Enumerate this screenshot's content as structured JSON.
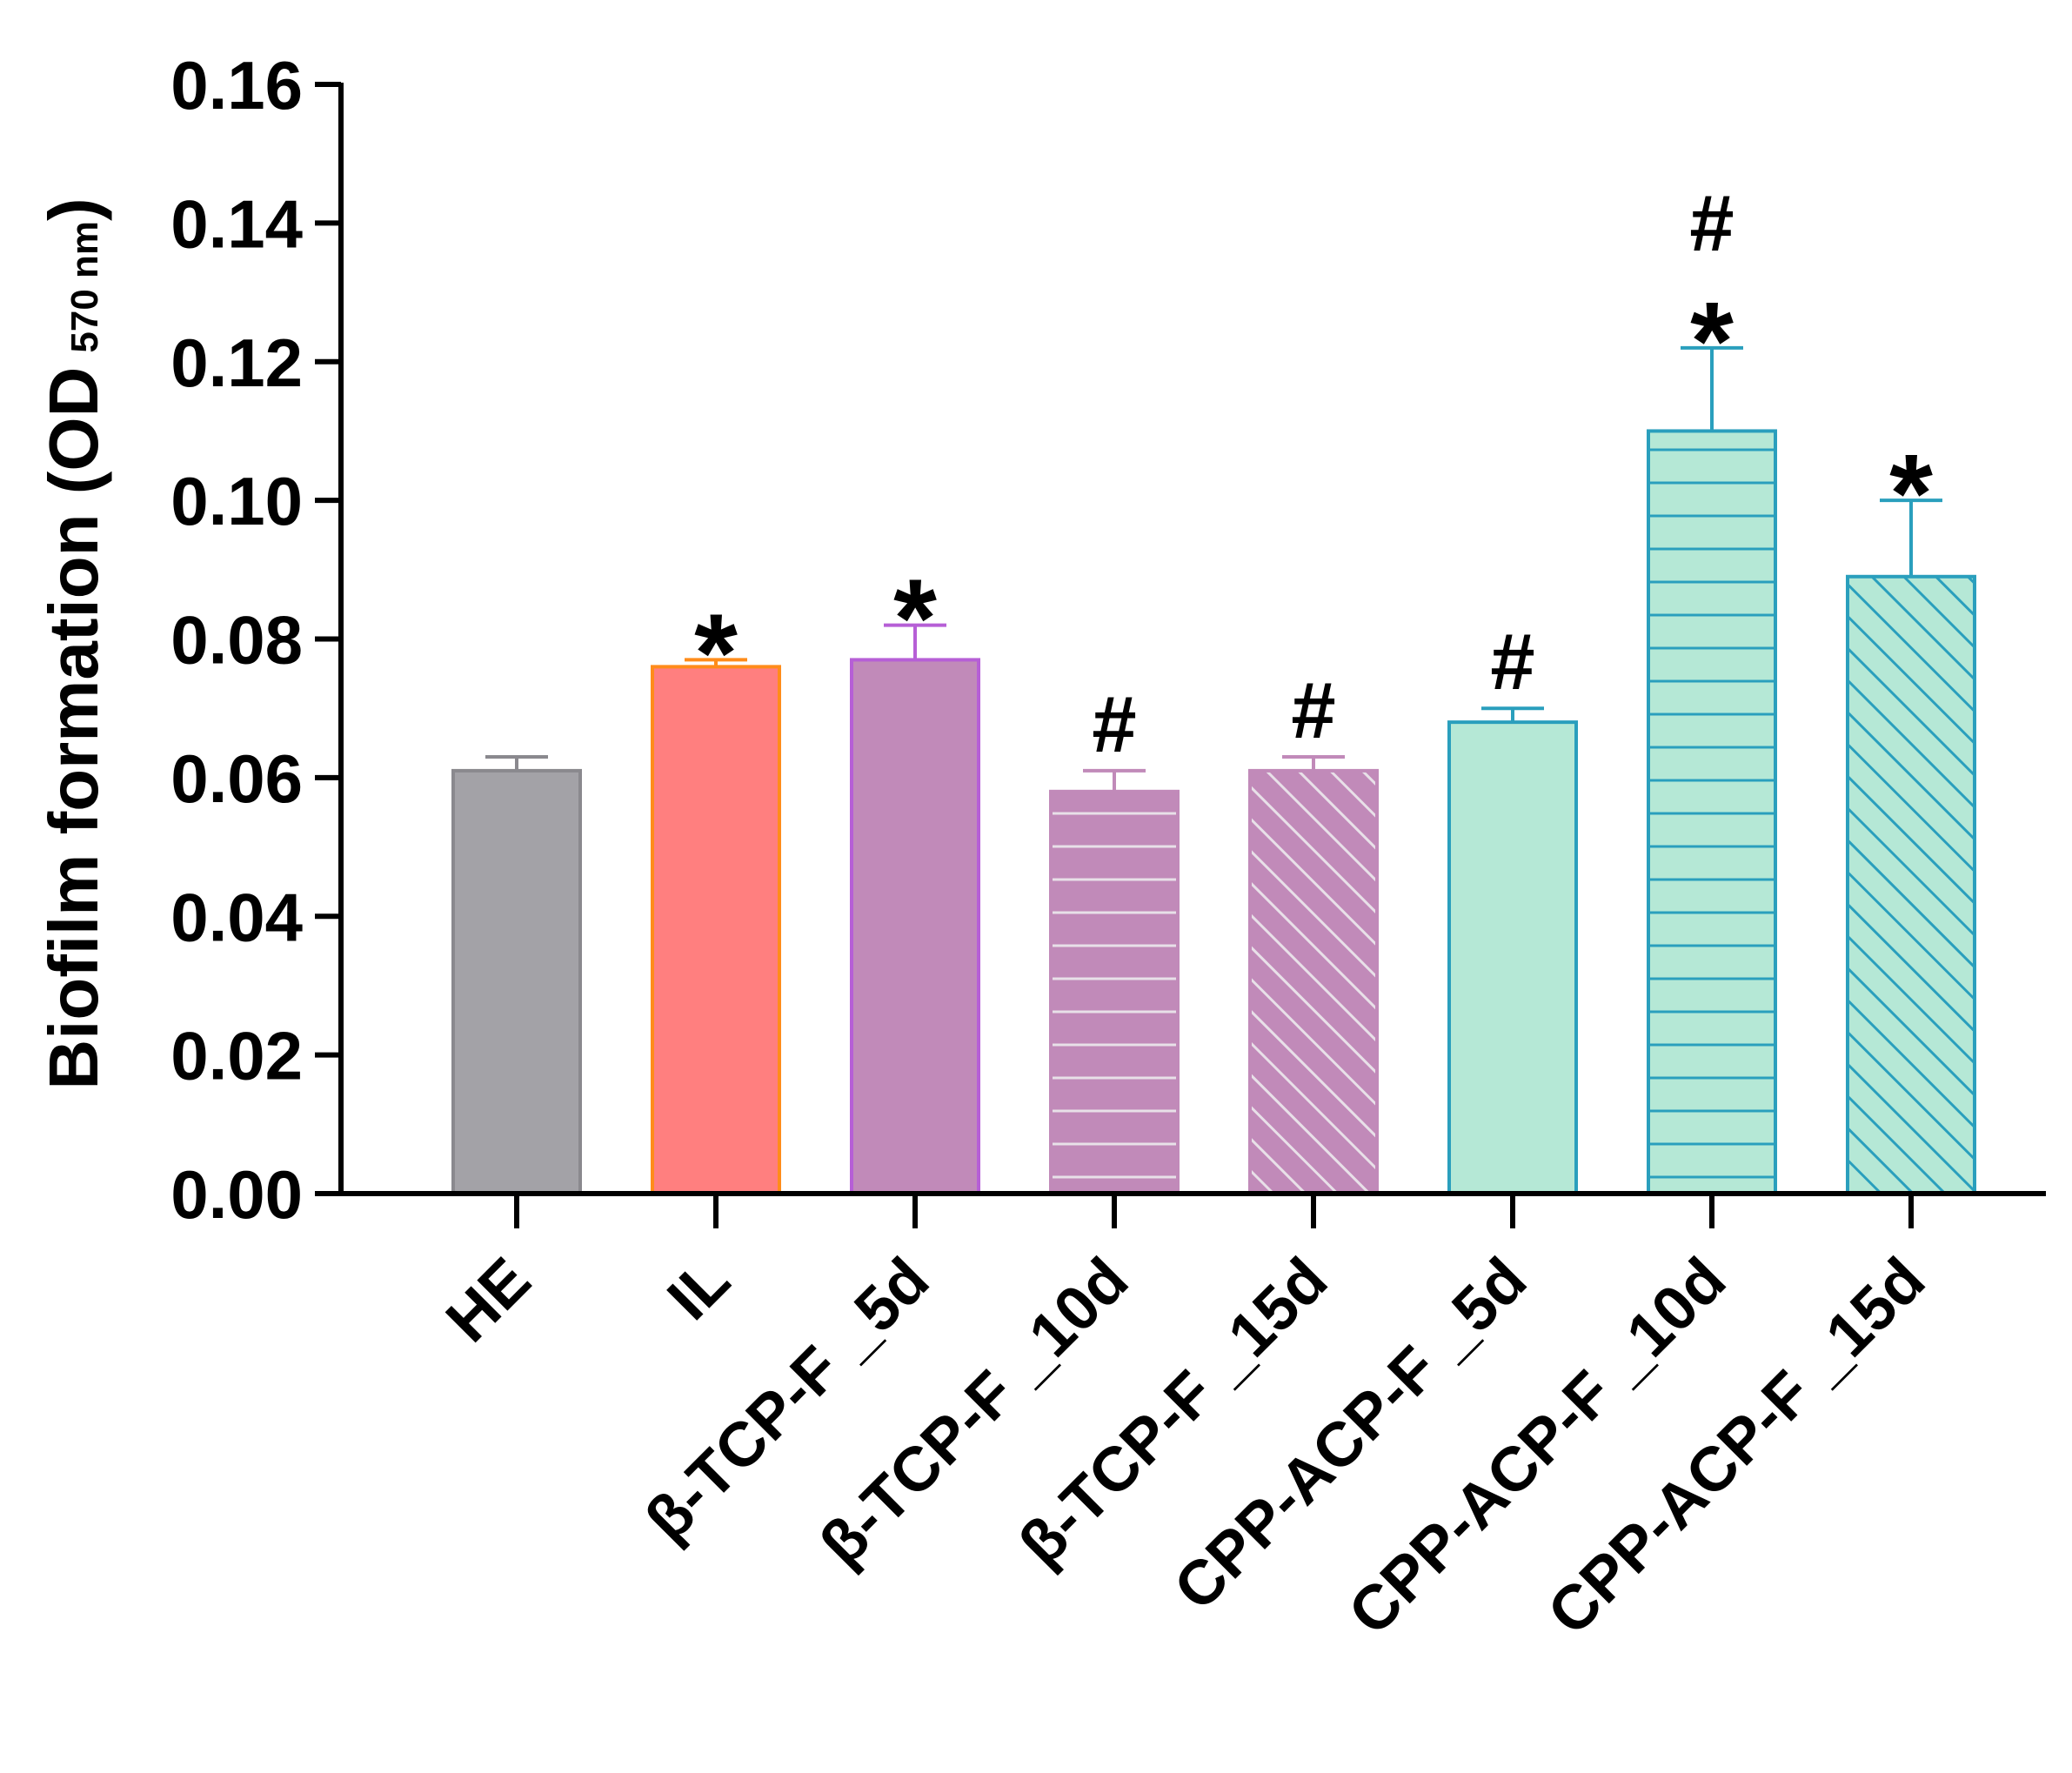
{
  "chart_data": {
    "type": "bar",
    "title": "",
    "xlabel": "",
    "ylabel": "Biofilm formation (OD",
    "ylabel_subscript": "570 nm",
    "ylabel_close": ")",
    "ylim": [
      0,
      0.16
    ],
    "yticks": [
      "0.00",
      "0.02",
      "0.04",
      "0.06",
      "0.08",
      "0.10",
      "0.12",
      "0.14",
      "0.16"
    ],
    "grid": false,
    "categories": [
      "HE",
      "IL",
      "β-TCP-F _5d",
      "β-TCP-F _10d",
      "β-TCP-F _15d",
      "CPP-ACP-F _5d",
      "CPP-ACP-F _10d",
      "CPP-ACP-F _15d"
    ],
    "values": [
      0.061,
      0.076,
      0.077,
      0.058,
      0.061,
      0.068,
      0.11,
      0.089
    ],
    "errors": [
      0.002,
      0.001,
      0.005,
      0.003,
      0.002,
      0.002,
      0.012,
      0.011
    ],
    "annotations": [
      [],
      [
        "*"
      ],
      [
        "*"
      ],
      [
        "#"
      ],
      [
        "#"
      ],
      [
        "#"
      ],
      [
        "*",
        "#"
      ],
      [
        "*"
      ]
    ],
    "styles": [
      {
        "fill": "#a3a2a7",
        "stroke": "#8a898e",
        "pattern": "solid"
      },
      {
        "fill": "#ff7f7f",
        "stroke": "#ff8c1a",
        "pattern": "solid"
      },
      {
        "fill": "#c18ab9",
        "stroke": "#b65fd6",
        "pattern": "solid"
      },
      {
        "fill": "#c18ab9",
        "stroke": "#c18ab9",
        "pattern": "hlines",
        "line_color": "#e8e0e8"
      },
      {
        "fill": "#c18ab9",
        "stroke": "#c18ab9",
        "pattern": "diag",
        "line_color": "#e8e0e8"
      },
      {
        "fill": "#b5e8d6",
        "stroke": "#2a9fbd",
        "pattern": "solid"
      },
      {
        "fill": "#b5e8d6",
        "stroke": "#2a9fbd",
        "pattern": "hlines",
        "line_color": "#2a9fbd"
      },
      {
        "fill": "#b5e8d6",
        "stroke": "#2a9fbd",
        "pattern": "diag",
        "line_color": "#2a9fbd"
      }
    ],
    "axis_color": "#000000"
  }
}
